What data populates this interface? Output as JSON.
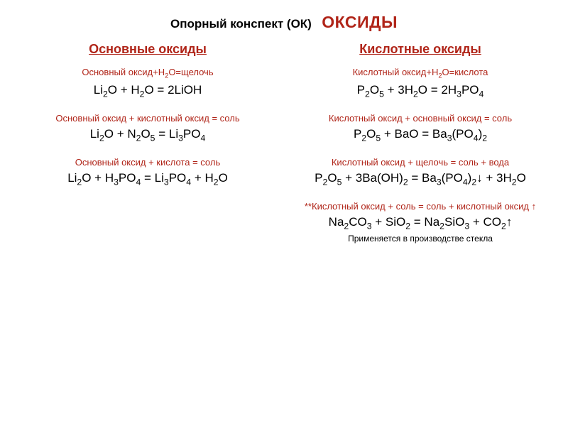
{
  "colors": {
    "red": "#b02418",
    "black": "#000000"
  },
  "header": {
    "prefix": "Опорный конспект (ОК)",
    "main": "ОКСИДЫ"
  },
  "left": {
    "title": "Основные оксиды",
    "blocks": [
      {
        "desc": "Основный оксид+H₂O=щелочь",
        "eq": "Li₂O + H₂O = 2LiOH"
      },
      {
        "desc": "Основный оксид + кислотный оксид = соль",
        "eq": "Li₂O + N₂O₅ = Li₃PO₄"
      },
      {
        "desc": "Основный оксид + кислота = соль",
        "eq": "Li₂O + H₃PO₄ = Li₃PO₄ + H₂O"
      }
    ]
  },
  "right": {
    "title": "Кислотные оксиды",
    "blocks": [
      {
        "desc": "Кислотный оксид+H₂O=кислота",
        "eq": "P₂O₅ + 3H₂O = 2H₃PO₄"
      },
      {
        "desc": "Кислотный оксид + основный оксид = соль",
        "eq": "P₂O₅ + BaO = Ba₃(PO₄)₂"
      },
      {
        "desc": "Кислотный оксид + щелочь = соль + вода",
        "eq": "P₂O₅ + 3Ba(OH)₂ = Ba₃(PO₄)₂↓ + 3H₂O"
      },
      {
        "desc": "**Кислотный оксид + соль = соль + кислотный оксид ↑",
        "eq": "Na₂CO₃ + SiO₂ = Na₂SiO₃ + CO₂↑",
        "note": "Применяется в производстве стекла"
      }
    ]
  }
}
